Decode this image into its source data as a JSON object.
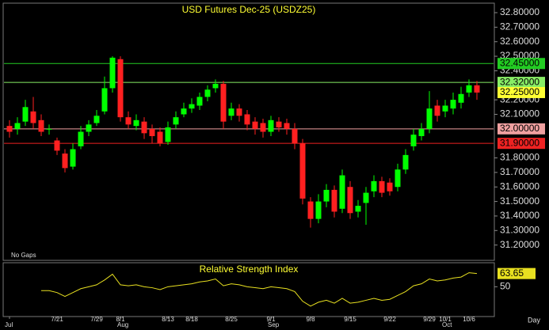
{
  "chart_data": {
    "type": "candlestick",
    "title": "USD Futures Dec-25 (USDZ25)",
    "note": "No Gaps",
    "period": "Day",
    "categories": [
      "Jul",
      null,
      null,
      null,
      null,
      null,
      "7/21",
      null,
      null,
      null,
      null,
      "7/29",
      null,
      null,
      "8/1",
      null,
      null,
      null,
      null,
      null,
      "8/13",
      null,
      null,
      "8/18",
      null,
      null,
      null,
      null,
      "8/25",
      null,
      null,
      null,
      null,
      "9/1",
      null,
      null,
      null,
      null,
      "9/8",
      null,
      null,
      null,
      null,
      "9/15",
      null,
      null,
      null,
      null,
      "9/22",
      null,
      null,
      null,
      null,
      "9/29",
      null,
      "10/1",
      null,
      null,
      "10/6",
      null
    ],
    "months": [
      {
        "index": 14,
        "label": "Aug"
      },
      {
        "index": 33,
        "label": "Sep"
      },
      {
        "index": 55,
        "label": "Oct"
      }
    ],
    "open": [
      32.02,
      32.0,
      32.05,
      32.12,
      32.06,
      32.0,
      31.92,
      31.83,
      31.74,
      31.88,
      31.98,
      32.04,
      32.12,
      32.28,
      32.48,
      32.08,
      32.02,
      32.05,
      32.0,
      31.98,
      31.91,
      32.03,
      32.1,
      32.14,
      32.16,
      32.22,
      32.28,
      32.31,
      32.09,
      32.14,
      32.1,
      32.05,
      32.04,
      31.98,
      32.05,
      32.04,
      32.0,
      31.9,
      31.5,
      31.38,
      31.5,
      31.58,
      31.45,
      31.6,
      31.43,
      31.49,
      31.57,
      31.64,
      31.63,
      31.6,
      31.72,
      31.88,
      31.95,
      32.0,
      32.16,
      32.12,
      32.14,
      32.18,
      32.25,
      32.3
    ],
    "high": [
      32.06,
      32.08,
      32.2,
      32.22,
      32.1,
      32.03,
      31.94,
      31.86,
      31.9,
      32.02,
      32.06,
      32.13,
      32.36,
      32.5,
      32.5,
      32.12,
      32.1,
      32.08,
      32.03,
      32.01,
      32.05,
      32.12,
      32.18,
      32.21,
      32.25,
      32.3,
      32.34,
      32.33,
      32.18,
      32.17,
      32.13,
      32.08,
      32.07,
      32.09,
      32.08,
      32.07,
      32.04,
      31.93,
      31.53,
      31.55,
      31.62,
      31.61,
      31.72,
      31.64,
      31.51,
      31.6,
      31.68,
      31.67,
      31.66,
      31.76,
      31.86,
      32.0,
      32.04,
      32.26,
      32.2,
      32.2,
      32.25,
      32.29,
      32.34,
      32.33
    ],
    "low": [
      31.94,
      31.96,
      32.02,
      32.0,
      31.95,
      31.96,
      31.82,
      31.7,
      31.72,
      31.86,
      31.95,
      32.02,
      32.1,
      32.25,
      32.05,
      32.0,
      31.99,
      31.93,
      31.9,
      31.88,
      31.89,
      32.0,
      32.08,
      32.11,
      32.13,
      32.19,
      32.25,
      32.0,
      32.06,
      32.05,
      31.99,
      31.96,
      31.94,
      31.95,
      31.98,
      31.96,
      31.86,
      31.48,
      31.32,
      31.35,
      31.46,
      31.39,
      31.42,
      31.38,
      31.39,
      31.34,
      31.53,
      31.53,
      31.54,
      31.57,
      31.69,
      31.85,
      31.92,
      31.97,
      32.05,
      32.08,
      32.1,
      32.14,
      32.22,
      32.2
    ],
    "close": [
      31.98,
      32.04,
      32.15,
      32.04,
      31.98,
      32.0,
      31.85,
      31.73,
      31.86,
      31.98,
      32.03,
      32.09,
      32.28,
      32.49,
      32.08,
      32.03,
      32.06,
      31.97,
      31.95,
      31.9,
      32.01,
      32.08,
      32.14,
      32.17,
      32.22,
      32.27,
      32.31,
      32.05,
      32.14,
      32.09,
      32.03,
      32.0,
      31.98,
      32.06,
      32.01,
      32.0,
      31.9,
      31.52,
      31.38,
      31.5,
      31.58,
      31.43,
      31.68,
      31.42,
      31.47,
      31.56,
      31.64,
      31.56,
      31.57,
      31.72,
      31.82,
      31.96,
      32.0,
      32.14,
      32.09,
      32.16,
      32.2,
      32.24,
      32.3,
      32.25
    ],
    "up_color": "#00ff00",
    "down_color": "#ff2020",
    "ylim": [
      31.1,
      32.86
    ],
    "yticks": [
      {
        "value": 31.2,
        "label": "31.20000"
      },
      {
        "value": 31.3,
        "label": "31.30000"
      },
      {
        "value": 31.4,
        "label": "31.40000"
      },
      {
        "value": 31.5,
        "label": "31.50000"
      },
      {
        "value": 31.6,
        "label": "31.60000"
      },
      {
        "value": 31.7,
        "label": "31.70000"
      },
      {
        "value": 31.8,
        "label": "31.80000"
      },
      {
        "value": 32.1,
        "label": "32.10000"
      },
      {
        "value": 32.2,
        "label": "32.20000"
      },
      {
        "value": 32.4,
        "label": "32.40000"
      },
      {
        "value": 32.5,
        "label": "32.50000"
      },
      {
        "value": 32.6,
        "label": "32.60000"
      },
      {
        "value": 32.7,
        "label": "32.70000"
      },
      {
        "value": 32.8,
        "label": "32.80000"
      }
    ],
    "levels": [
      {
        "value": 32.45,
        "label": "32.45000",
        "color": "#22cc22"
      },
      {
        "value": 32.32,
        "label": "32.32000",
        "color": "#88ee66"
      },
      {
        "value": 32.0,
        "label": "32.00000",
        "color": "#f0a0a0"
      },
      {
        "value": 31.9,
        "label": "31.90000",
        "color": "#ee2222"
      }
    ],
    "last_price": {
      "value": 32.25,
      "label": "32.25000",
      "color": "#ffff33"
    },
    "rsi": {
      "title": "Relative Strength Index",
      "color": "#e8e020",
      "values": [
        null,
        null,
        null,
        null,
        46,
        46,
        44,
        40,
        44,
        48,
        50,
        52,
        57,
        63,
        52,
        51,
        52,
        50,
        49,
        47,
        50,
        51,
        52,
        53,
        55,
        56,
        58,
        51,
        53,
        52,
        50,
        49,
        48,
        50,
        49,
        48,
        45,
        35,
        30,
        34,
        36,
        33,
        38,
        33,
        34,
        36,
        38,
        36,
        37,
        41,
        45,
        51,
        53,
        58,
        56,
        57,
        59,
        60,
        64.5,
        63.65
      ],
      "ylim": [
        20,
        74
      ],
      "yticks": [
        50
      ]
    }
  }
}
